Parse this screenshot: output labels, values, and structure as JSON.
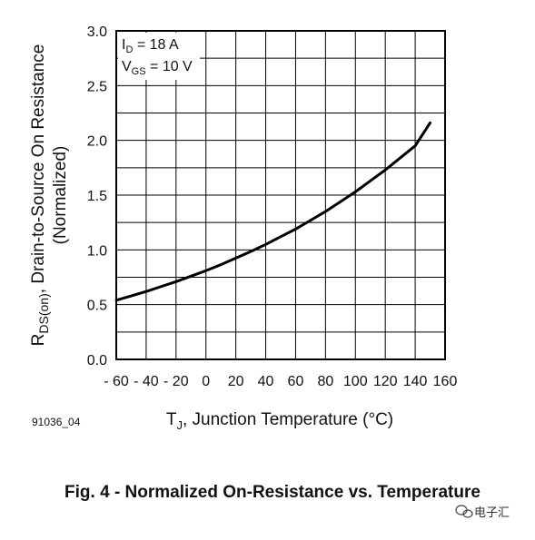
{
  "chart_data": {
    "type": "line",
    "title": "",
    "xlabel": {
      "main": "T",
      "sub": "J",
      "rest": ", Junction Temperature (°C)"
    },
    "ylabel": {
      "pre": "R",
      "sub": "DS(on)",
      "rest": ", Drain-to-Source On Resistance",
      "line2": "(Normalized)"
    },
    "xlim": [
      -60,
      160
    ],
    "ylim": [
      0.0,
      3.0
    ],
    "x_ticks": [
      -60,
      -40,
      -20,
      0,
      20,
      40,
      60,
      80,
      100,
      120,
      140,
      160
    ],
    "x_tick_labels": [
      "- 60",
      "- 40",
      "- 20",
      "0",
      "20",
      "40",
      "60",
      "80",
      "100",
      "120",
      "140",
      "160"
    ],
    "y_ticks": [
      0.0,
      0.5,
      1.0,
      1.5,
      2.0,
      2.5,
      3.0
    ],
    "y_tick_labels": [
      "0.0",
      "0.5",
      "1.0",
      "1.5",
      "2.0",
      "2.5",
      "3.0"
    ],
    "x_minor_step": 20,
    "y_minor_step": 0.25,
    "grid": true,
    "legend_placement": "top-left",
    "annotations": [
      {
        "main": "I",
        "sub": "D",
        "rest": " = 18 A"
      },
      {
        "main": "V",
        "sub": "GS",
        "rest": " = 10 V"
      }
    ],
    "series": [
      {
        "x": [
          -60,
          -50,
          -40,
          -30,
          -20,
          -10,
          0,
          10,
          20,
          30,
          40,
          50,
          60,
          70,
          80,
          90,
          100,
          110,
          120,
          130,
          140,
          150
        ],
        "values": [
          0.54,
          0.58,
          0.62,
          0.665,
          0.71,
          0.76,
          0.81,
          0.865,
          0.925,
          0.985,
          1.05,
          1.12,
          1.19,
          1.27,
          1.35,
          1.44,
          1.53,
          1.63,
          1.73,
          1.84,
          1.95,
          2.16
        ]
      }
    ],
    "colors": {
      "line": "#000000",
      "grid": "#000000",
      "frame": "#000000"
    }
  },
  "figure_id": "91036_04",
  "caption": "Fig. 4 - Normalized On-Resistance vs. Temperature",
  "watermark": "电子汇"
}
